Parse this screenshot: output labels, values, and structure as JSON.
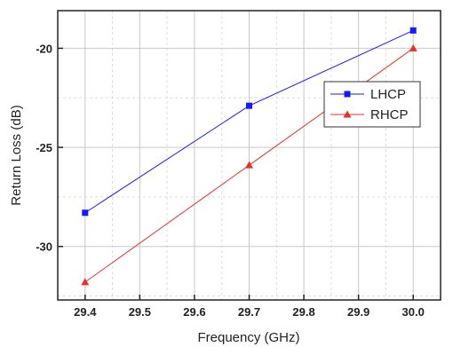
{
  "chart_data": {
    "type": "line",
    "title": "",
    "xlabel": "Frequency (GHz)",
    "ylabel": "Return Loss (dB)",
    "x": [
      29.4,
      29.7,
      30.0
    ],
    "xlim": [
      29.35,
      30.05
    ],
    "ylim": [
      -32.7,
      -18.1
    ],
    "xticks": [
      29.4,
      29.5,
      29.6,
      29.7,
      29.8,
      29.9,
      30.0
    ],
    "xtick_labels": [
      "29.4",
      "29.5",
      "29.6",
      "29.7",
      "29.8",
      "29.9",
      "30.0"
    ],
    "yticks": [
      -20,
      -25,
      -30
    ],
    "ytick_labels": [
      "-20",
      "-25",
      "-30"
    ],
    "grid": true,
    "legend_position": "right",
    "series": [
      {
        "name": "LHCP",
        "values": [
          -28.3,
          -22.9,
          -19.1
        ],
        "color": "#1a1aff",
        "marker": "square"
      },
      {
        "name": "RHCP",
        "values": [
          -31.8,
          -25.9,
          -20.0
        ],
        "color": "#e8302a",
        "marker": "triangle"
      }
    ]
  }
}
